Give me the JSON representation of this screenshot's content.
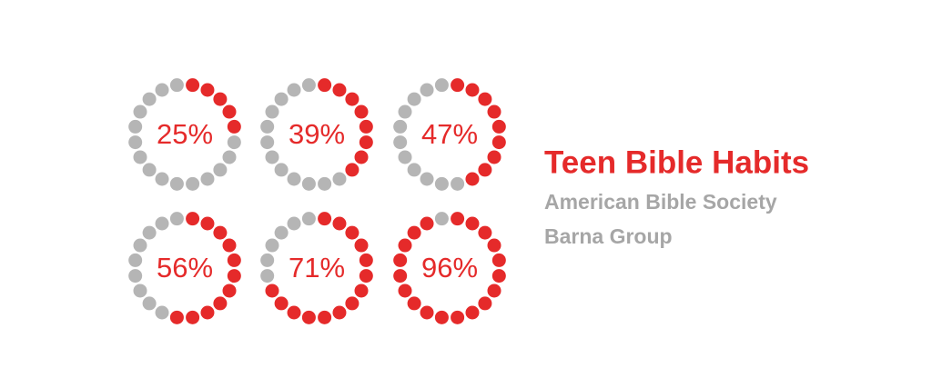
{
  "chart_data": {
    "type": "dot-gauge",
    "title": "Teen Bible Habits",
    "sources": [
      "American Bible Society",
      "Barna Group"
    ],
    "values": [
      25,
      39,
      47,
      56,
      71,
      96
    ],
    "value_labels": [
      "25%",
      "39%",
      "47%",
      "56%",
      "71%",
      "96%"
    ],
    "color": "#e52a2a",
    "track_color": "#b5b5b5"
  }
}
